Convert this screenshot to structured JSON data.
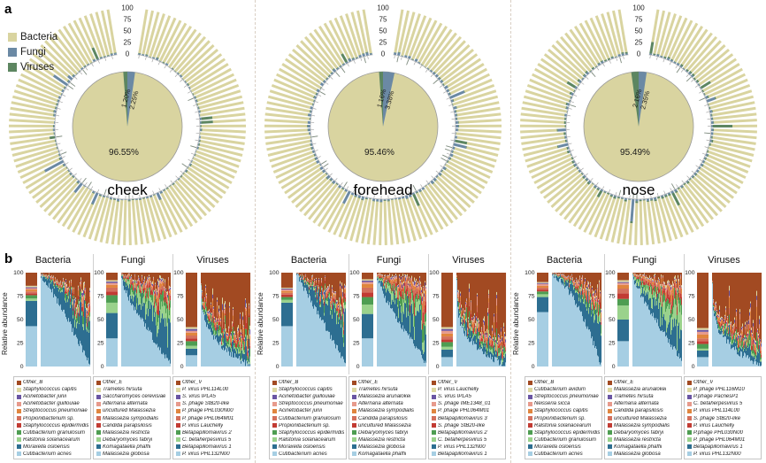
{
  "figure": {
    "panel_a_label": "a",
    "panel_b_label": "b"
  },
  "chart_data": {
    "panel_a": {
      "type": "circular-stacked-bar-with-center-pie",
      "description": "Per-sample circular stacked bars (kingdom relative abundance) around a center pie of mean composition",
      "radial_axis_ticks": [
        100,
        75,
        50,
        25,
        0
      ],
      "legend": [
        {
          "label": "Bacteria",
          "color": "#d9d4a0"
        },
        {
          "label": "Fungi",
          "color": "#6b89a4"
        },
        {
          "label": "Viruses",
          "color": "#5d8661"
        }
      ],
      "sites": [
        {
          "name": "cheek",
          "bacteria_pct": 96.55,
          "fungi_pct": 2.25,
          "virus_pct": 1.2,
          "bacteria_label": "96.55%",
          "fungi_label": "2.25%",
          "virus_label": "1.20%",
          "seed": 11
        },
        {
          "name": "forehead",
          "bacteria_pct": 95.46,
          "fungi_pct": 3.38,
          "virus_pct": 1.16,
          "bacteria_label": "95.46%",
          "fungi_label": "3.38%",
          "virus_label": "1.16%",
          "seed": 22
        },
        {
          "name": "nose",
          "bacteria_pct": 95.49,
          "fungi_pct": 2.35,
          "virus_pct": 2.16,
          "bacteria_label": "95.49%",
          "fungi_label": "2.35%",
          "virus_label": "2.16%",
          "seed": 33
        }
      ]
    },
    "panel_b": {
      "type": "stacked-bar",
      "ylabel": "Relative abundance",
      "yticks": [
        100,
        75,
        50,
        25,
        0
      ],
      "ylim": [
        0,
        100
      ],
      "n_samples": 56,
      "palette": [
        "#a24a22",
        "#ddd8a2",
        "#6a55a3",
        "#e79a8c",
        "#e0853e",
        "#d4705c",
        "#c23b33",
        "#4e9d52",
        "#9ad28c",
        "#2d6e91",
        "#a6cee3"
      ],
      "groups": [
        {
          "site": "cheek",
          "panels": [
            {
              "title": "Bacteria",
              "seed": 101,
              "legend": [
                "Other_B",
                "Staphylococcus capitis",
                "Acinetobacter junii",
                "Acinetobacter guillouiae",
                "Streptococcus pneumoniae",
                "Propionibacterium sp.",
                "Staphylococcus epidermidis",
                "Cutibacterium granulosum",
                "Ralstonia solanacearum",
                "Moraxella osloensis",
                "Cutibacterium acnes"
              ],
              "summary": [
                14,
                1.5,
                1,
                1.5,
                2,
                2,
                2,
                3.5,
                2.5,
                27,
                43
              ],
              "curve": {
                "start": 97,
                "end": 2,
                "pow": 1.15
              }
            },
            {
              "title": "Fungi",
              "seed": 102,
              "legend": [
                "Other_E",
                "Trametes hirsuta",
                "Saccharomyces cerevisiae",
                "Alternaria alternata",
                "uncultured Malassezia",
                "Malassezia sympodialis",
                "Candida parapsilosis",
                "Malassezia restricta",
                "Debaryomyces fabryi",
                "Komagataella phaffii",
                "Malassezia globosa"
              ],
              "summary": [
                8,
                1.5,
                1.5,
                2,
                3,
                4,
                4,
                8,
                11,
                27,
                30
              ],
              "curve": {
                "start": 93,
                "end": 4,
                "pow": 0.8
              }
            },
            {
              "title": "Viruses",
              "seed": 103,
              "legend": [
                "Other_V",
                "P. virus PHL114L00",
                "S. virus IPLA5",
                "S. phage StB20-like",
                "P. phage PHL030N00",
                "P. phage PHL064M01",
                "P. virus Lauchelly",
                "Betapapillomavirus 2",
                "C. betaherpesvirus 5",
                "Betapapillomavirus 1",
                "P. virus PHL132N00"
              ],
              "summary": [
                58,
                2,
                2,
                2,
                3,
                3,
                3,
                5,
                3,
                7,
                12
              ],
              "curve": {
                "start": 88,
                "end": 1,
                "pow": 0.32
              }
            }
          ]
        },
        {
          "site": "forehead",
          "panels": [
            {
              "title": "Bacteria",
              "seed": 201,
              "legend": [
                "Other_B",
                "Staphylococcus capitis",
                "Acinetobacter guillouiae",
                "Streptococcus pneumoniae",
                "Acinetobacter junii",
                "Cutibacterium granulosum",
                "Propionibacterium sp.",
                "Staphylococcus epidermidis",
                "Ralstonia solanacearum",
                "Moraxella osloensis",
                "Cutibacterium acnes"
              ],
              "summary": [
                16,
                1,
                1,
                1.5,
                2,
                2,
                2.5,
                3,
                3,
                25,
                43
              ],
              "curve": {
                "start": 98,
                "end": 4,
                "pow": 1.0
              }
            },
            {
              "title": "Fungi",
              "seed": 202,
              "legend": [
                "Other_E",
                "Trametes hirsuta",
                "Malassezia arunalokei",
                "Alternaria alternata",
                "Malassezia sympodialis",
                "Candida parapsilosis",
                "uncultured Malassezia",
                "Debaryomyces fabryi",
                "Malassezia restricta",
                "Malassezia globosa",
                "Komagataella phaffii"
              ],
              "summary": [
                7,
                1.5,
                1.5,
                2,
                4,
                5,
                5,
                8,
                10,
                26,
                30
              ],
              "curve": {
                "start": 95,
                "end": 5,
                "pow": 0.8
              }
            },
            {
              "title": "Viruses",
              "seed": 203,
              "legend": [
                "Other_V",
                "P. virus Lauchelly",
                "S. virus IPLA5",
                "S. phage IME1348_01",
                "P. phage PHL064M01",
                "Betapapillomavirus 3",
                "S. phage StB20-like",
                "Betapapillomavirus 2",
                "C. betaherpesvirus 5",
                "P. virus PHL132N00",
                "Betapapillomavirus 1"
              ],
              "summary": [
                58,
                2,
                2,
                3,
                3,
                3,
                3,
                5,
                3,
                8,
                10
              ],
              "curve": {
                "start": 90,
                "end": 1,
                "pow": 0.28
              }
            }
          ]
        },
        {
          "site": "nose",
          "panels": [
            {
              "title": "Bacteria",
              "seed": 301,
              "legend": [
                "Other_B",
                "Cutibacterium avidum",
                "Streptococcus pneumoniae",
                "Neisseria sicca",
                "Staphylococcus capitis",
                "Propionibacterium sp.",
                "Ralstonia solanacearum",
                "Staphylococcus epidermidis",
                "Cutibacterium granulosum",
                "Moraxella osloensis",
                "Cutibacterium acnes"
              ],
              "summary": [
                10,
                1,
                1,
                2,
                2,
                2,
                2,
                3,
                3,
                16,
                58
              ],
              "curve": {
                "start": 97,
                "end": 3,
                "pow": 1.6
              }
            },
            {
              "title": "Fungi",
              "seed": 302,
              "legend": [
                "Other_E",
                "Malassezia arunalokei",
                "Trametes hirsuta",
                "Alternaria alternata",
                "Candida parapsilosis",
                "uncultured Malassezia",
                "Malassezia sympodialis",
                "Debaryomyces fabryi",
                "Malassezia restricta",
                "Komagataella phaffii",
                "Malassezia globosa"
              ],
              "summary": [
                8,
                2,
                1,
                2,
                4,
                5,
                6,
                7,
                15,
                23,
                27
              ],
              "curve": {
                "start": 95,
                "end": 6,
                "pow": 0.9
              }
            },
            {
              "title": "Viruses",
              "seed": 303,
              "legend": [
                "Other_V",
                "P. phage PHL116M10",
                "P.phage PacnesP1",
                "C. betaherpesvirus 5",
                "P. virus PHL114L00",
                "S. phage StB20-like",
                "P. virus Lauchelly",
                "P.phage PHL030N00",
                "P. phage PHL064M01",
                "Betapapillomavirus 1",
                "P. virus PHL132N00"
              ],
              "summary": [
                59,
                2,
                2,
                3,
                4,
                3,
                3,
                5,
                2,
                7,
                10
              ],
              "curve": {
                "start": 85,
                "end": 1,
                "pow": 0.3
              }
            }
          ]
        }
      ]
    }
  }
}
